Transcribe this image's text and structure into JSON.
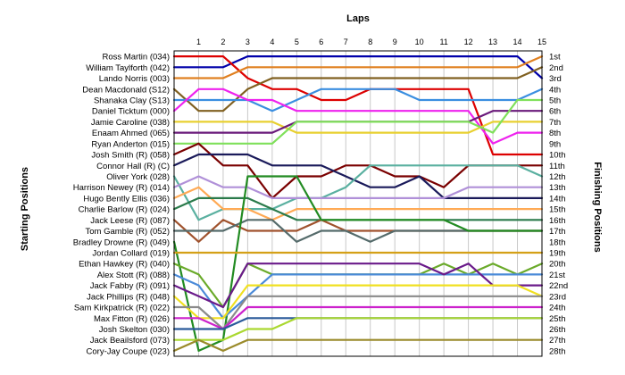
{
  "chart_data": {
    "type": "line",
    "title": "",
    "xlabel": "Laps",
    "ylabel_left": "Starting Positions",
    "ylabel_right": "Finishing Positions",
    "x": [
      0,
      1,
      2,
      3,
      4,
      5,
      6,
      7,
      8,
      9,
      10,
      11,
      12,
      13,
      14,
      15
    ],
    "x_tick_labels": [
      "1",
      "2",
      "3",
      "4",
      "5",
      "6",
      "7",
      "8",
      "9",
      "10",
      "11",
      "12",
      "13",
      "14",
      "15"
    ],
    "y_range": [
      1,
      28
    ],
    "grid": true,
    "starting_grid": [
      "Ross Martin (034)",
      "William Taylforth (042)",
      "Lando Norris (003)",
      "Dean Macdonald (S12)",
      "Shanaka Clay (S13)",
      "Daniel Ticktum (000)",
      "Jamie Caroline (038)",
      "Enaam Ahmed (065)",
      "Ryan Anderton (015)",
      "Josh Smith  (R) (058)",
      "Connor Hall (R) (C)",
      "Oliver York (028)",
      "Harrison Newey (R) (014)",
      "Hugo Bently Ellis (036)",
      "Charlie Barlow  (R) (024)",
      "Jack Leese (R) (087)",
      "Tom Gamble  (R) (052)",
      "Bradley Drowne (R) (049)",
      "Jordan Collard (019)",
      "Ethan Hawkey (R) (040)",
      "Alex Stott (R) (088)",
      "Jack Fabby (R) (091)",
      "Jack Phillips (R) (048)",
      "Sam Kirkpatrick (R) (022)",
      "Max Fitton  (R) (026)",
      "Josh Skelton (030)",
      "Jack Beailsford (073)",
      "Cory-Jay Coupe (023)"
    ],
    "finishing_labels": [
      "1st",
      "2nd",
      "3rd",
      "4th",
      "5th",
      "6th",
      "7th",
      "8th",
      "9th",
      "10th",
      "11th",
      "12th",
      "13th",
      "14th",
      "15th",
      "16th",
      "17th",
      "18th",
      "19th",
      "20th",
      "21st",
      "22nd",
      "23rd",
      "24th",
      "25th",
      "26th",
      "27th",
      "28th"
    ],
    "series": [
      {
        "color": "#0000aa",
        "positions": [
          2,
          2,
          2,
          1,
          1,
          1,
          1,
          1,
          1,
          1,
          1,
          1,
          1,
          1,
          1,
          3
        ]
      },
      {
        "color": "#dd0000",
        "positions": [
          1,
          1,
          1,
          3,
          4,
          4,
          5,
          5,
          4,
          4,
          4,
          4,
          4,
          10,
          10,
          10
        ]
      },
      {
        "color": "#e08020",
        "positions": [
          3,
          3,
          3,
          2,
          2,
          2,
          2,
          2,
          2,
          2,
          2,
          2,
          2,
          2,
          2,
          1
        ]
      },
      {
        "color": "#806020",
        "positions": [
          4,
          6,
          6,
          4,
          3,
          3,
          3,
          3,
          3,
          3,
          3,
          3,
          3,
          3,
          3,
          2
        ]
      },
      {
        "color": "#3a8ee0",
        "positions": [
          5,
          5,
          5,
          5,
          6,
          5,
          4,
          4,
          4,
          4,
          5,
          5,
          5,
          5,
          5,
          4
        ]
      },
      {
        "color": "#ee22ee",
        "positions": [
          6,
          4,
          4,
          5,
          5,
          6,
          6,
          6,
          6,
          6,
          6,
          6,
          6,
          9,
          8,
          8
        ]
      },
      {
        "color": "#e8d030",
        "positions": [
          7,
          7,
          7,
          7,
          7,
          8,
          8,
          8,
          8,
          8,
          8,
          8,
          8,
          7,
          7,
          7
        ]
      },
      {
        "color": "#6a1a7a",
        "positions": [
          8,
          8,
          8,
          8,
          8,
          7,
          7,
          7,
          7,
          7,
          7,
          7,
          7,
          6,
          6,
          6
        ]
      },
      {
        "color": "#7fe05a",
        "positions": [
          9,
          9,
          9,
          9,
          9,
          7,
          7,
          7,
          7,
          7,
          7,
          7,
          7,
          8,
          5,
          5
        ]
      },
      {
        "color": "#7a0000",
        "positions": [
          10,
          9,
          11,
          11,
          14,
          12,
          12,
          11,
          11,
          12,
          12,
          13,
          11,
          11,
          11,
          11
        ]
      },
      {
        "color": "#1a1a5a",
        "positions": [
          11,
          10,
          10,
          10,
          11,
          11,
          11,
          12,
          13,
          13,
          12,
          14,
          14,
          14,
          14,
          14
        ]
      },
      {
        "color": "#5ab0a0",
        "positions": [
          12,
          16,
          15,
          15,
          15,
          14,
          14,
          13,
          11,
          11,
          11,
          11,
          11,
          11,
          11,
          12
        ]
      },
      {
        "color": "#b090d8",
        "positions": [
          13,
          12,
          13,
          13,
          14,
          14,
          14,
          14,
          14,
          14,
          14,
          14,
          13,
          13,
          13,
          13
        ]
      },
      {
        "color": "#ffaa55",
        "positions": [
          14,
          13,
          15,
          15,
          16,
          15,
          15,
          15,
          15,
          15,
          15,
          15,
          15,
          15,
          15,
          15
        ]
      },
      {
        "color": "#2a7a4a",
        "positions": [
          15,
          14,
          14,
          14,
          15,
          16,
          16,
          16,
          16,
          16,
          16,
          16,
          16,
          16,
          16,
          16
        ]
      },
      {
        "color": "#a0522d",
        "positions": [
          16,
          18,
          16,
          17,
          17,
          17,
          16,
          17,
          17,
          17,
          17,
          17,
          17,
          17,
          17,
          17
        ]
      },
      {
        "color": "#556b6b",
        "positions": [
          17,
          17,
          17,
          16,
          16,
          18,
          17,
          17,
          18,
          17,
          17,
          17,
          17,
          17,
          17,
          17
        ]
      },
      {
        "color": "#228b22",
        "positions": [
          18,
          28,
          27,
          12,
          12,
          12,
          16,
          16,
          16,
          16,
          16,
          16,
          17,
          17,
          17,
          17
        ]
      },
      {
        "color": "#d4a017",
        "positions": [
          19,
          19,
          19,
          19,
          19,
          19,
          19,
          19,
          19,
          19,
          19,
          19,
          19,
          19,
          19,
          19
        ]
      },
      {
        "color": "#6aaa2a",
        "positions": [
          20,
          21,
          24,
          20,
          21,
          21,
          21,
          21,
          21,
          21,
          21,
          20,
          21,
          20,
          21,
          20
        ]
      },
      {
        "color": "#4a8ad8",
        "positions": [
          21,
          22,
          25,
          23,
          21,
          21,
          21,
          21,
          21,
          21,
          21,
          21,
          21,
          21,
          21,
          21
        ]
      },
      {
        "color": "#6a1a8a",
        "positions": [
          22,
          23,
          24,
          20,
          20,
          20,
          20,
          20,
          20,
          20,
          20,
          21,
          20,
          22,
          22,
          22
        ]
      },
      {
        "color": "#f0e020",
        "positions": [
          23,
          25,
          25,
          22,
          22,
          22,
          22,
          22,
          22,
          22,
          22,
          22,
          22,
          22,
          22,
          23
        ]
      },
      {
        "color": "#8a8a8a",
        "positions": [
          24,
          24,
          26,
          23,
          23,
          23,
          23,
          23,
          23,
          23,
          23,
          23,
          23,
          23,
          23,
          23
        ]
      },
      {
        "color": "#cc22cc",
        "positions": [
          25,
          25,
          26,
          24,
          24,
          24,
          24,
          24,
          24,
          24,
          24,
          24,
          24,
          24,
          24,
          24
        ]
      },
      {
        "color": "#2a5a9a",
        "positions": [
          26,
          26,
          26,
          25,
          25,
          25,
          25,
          25,
          25,
          25,
          25,
          25,
          25,
          25,
          25,
          25
        ]
      },
      {
        "color": "#aad830",
        "positions": [
          27,
          27,
          27,
          26,
          26,
          25,
          25,
          25,
          25,
          25,
          25,
          25,
          25,
          25,
          25,
          25
        ]
      },
      {
        "color": "#9a8a2a",
        "positions": [
          28,
          27,
          28,
          27,
          27,
          27,
          27,
          27,
          27,
          27,
          27,
          27,
          27,
          27,
          27,
          27
        ]
      }
    ]
  }
}
